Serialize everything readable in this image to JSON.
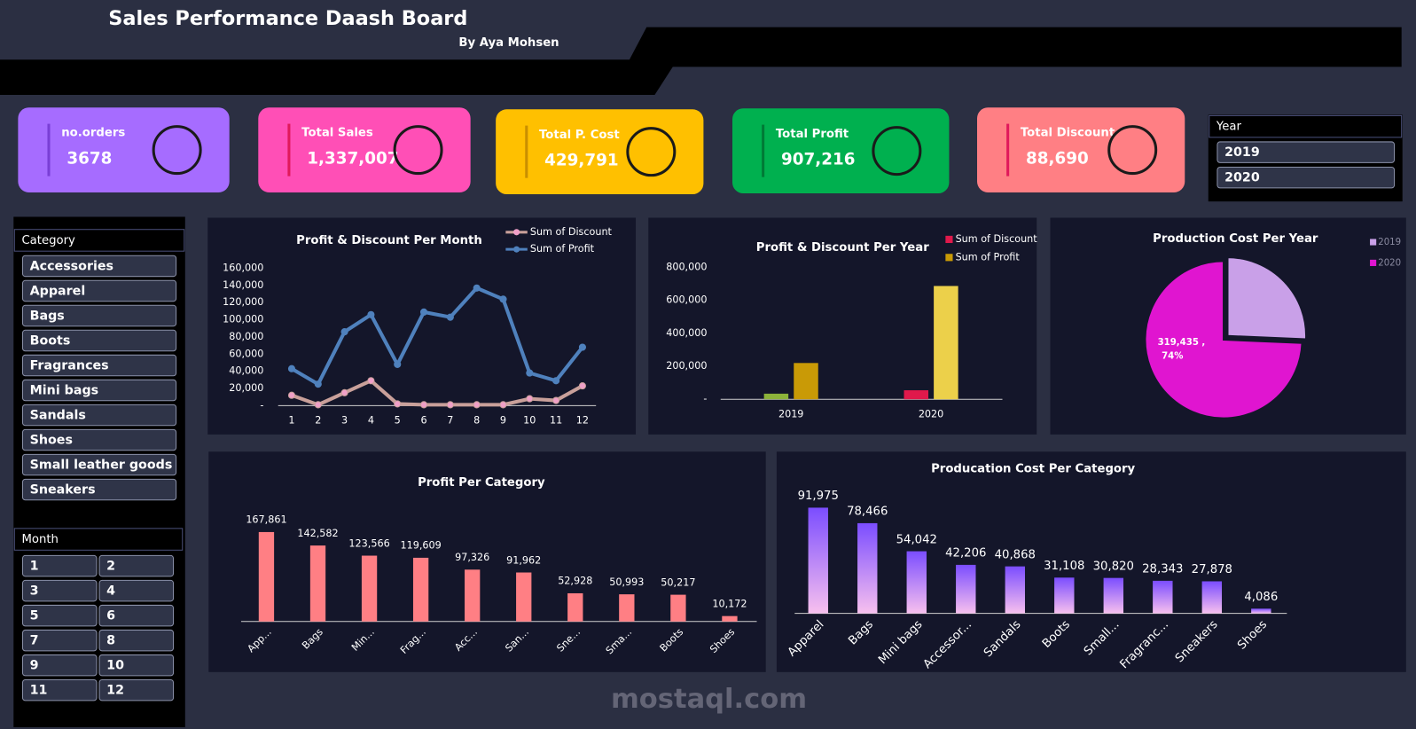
{
  "header": {
    "title": "Sales Performance Daash Board",
    "subtitle": "By Aya Mohsen"
  },
  "watermark": "mostaql.com",
  "kpis": [
    {
      "label": "no.orders",
      "value": "3678",
      "color": "#a66cff"
    },
    {
      "label": "Total Sales",
      "value": "1,337,007",
      "color": "#ff4fb6"
    },
    {
      "label": "Total P. Cost",
      "value": "429,791",
      "color": "#ffc000"
    },
    {
      "label": "Total Profit",
      "value": "907,216",
      "color": "#00b04f"
    },
    {
      "label": "Total Discount",
      "value": "88,690",
      "color": "#ff7f84"
    }
  ],
  "slicers": {
    "year": {
      "title": "Year",
      "items": [
        "2019",
        "2020"
      ]
    },
    "category": {
      "title": "Category",
      "items": [
        "Accessories",
        "Apparel",
        "Bags",
        "Boots",
        "Fragrances",
        "Mini bags",
        "Sandals",
        "Shoes",
        "Small leather goods",
        "Sneakers"
      ]
    },
    "month": {
      "title": "Month",
      "items": [
        "1",
        "2",
        "3",
        "4",
        "5",
        "6",
        "7",
        "8",
        "9",
        "10",
        "11",
        "12"
      ]
    }
  },
  "chart_data": [
    {
      "type": "line",
      "title": "Profit & Discount Per Month",
      "categories": [
        "1",
        "2",
        "3",
        "4",
        "5",
        "6",
        "7",
        "8",
        "9",
        "10",
        "11",
        "12"
      ],
      "series": [
        {
          "name": "Sum of Discount",
          "color": "#c9a09a",
          "values": [
            12000,
            1000,
            15000,
            29000,
            2000,
            1000,
            1000,
            1000,
            1000,
            8000,
            6000,
            23000
          ]
        },
        {
          "name": "Sum of Profit",
          "color": "#4f81bd",
          "values": [
            43000,
            25000,
            86000,
            106000,
            48000,
            109000,
            103000,
            137000,
            124000,
            38000,
            29000,
            68000
          ]
        }
      ],
      "ylim": [
        0,
        160000
      ],
      "yticks": [
        {
          "value": 0,
          "label": "-"
        },
        {
          "value": 20000,
          "label": "20,000"
        },
        {
          "value": 40000,
          "label": "40,000"
        },
        {
          "value": 60000,
          "label": "60,000"
        },
        {
          "value": 80000,
          "label": "80,000"
        },
        {
          "value": 100000,
          "label": "100,000"
        },
        {
          "value": 120000,
          "label": "120,000"
        },
        {
          "value": 140000,
          "label": "140,000"
        },
        {
          "value": 160000,
          "label": "160,000"
        }
      ]
    },
    {
      "type": "grouped-bar",
      "title": "Profit & Discount Per Year",
      "categories": [
        "2019",
        "2020"
      ],
      "series": [
        {
          "name": "Sum of Discount",
          "color": "#e0194b",
          "colors": [
            "#8db33a",
            "#e0194b"
          ],
          "values": [
            34000,
            54690
          ]
        },
        {
          "name": "Sum of Profit",
          "color": "#c99a06",
          "colors": [
            "#c99a06",
            "#ecd04a"
          ],
          "values": [
            220000,
            687216
          ]
        }
      ],
      "ylim": [
        0,
        800000
      ],
      "yticks": [
        {
          "value": 0,
          "label": "-"
        },
        {
          "value": 200000,
          "label": "200,000"
        },
        {
          "value": 400000,
          "label": "400,000"
        },
        {
          "value": 600000,
          "label": "600,000"
        },
        {
          "value": 800000,
          "label": "800,000"
        }
      ]
    },
    {
      "type": "pie",
      "title": "Production Cost Per Year",
      "categories": [
        "2019",
        "2020"
      ],
      "values": [
        110356,
        319435
      ],
      "colors": [
        "#c9a0e8",
        "#e015d0"
      ],
      "value_labels": [
        null,
        "319,435 ,"
      ],
      "percent_labels": [
        null,
        "74%"
      ]
    },
    {
      "type": "bar",
      "title": "Profit Per Category",
      "color": "#ff7f84",
      "categories": [
        "App...",
        "Bags",
        "Min...",
        "Frag...",
        "Acc...",
        "San...",
        "Sne...",
        "Sma...",
        "Boots",
        "Shoes"
      ],
      "values": [
        167861,
        142582,
        123566,
        119609,
        97326,
        91962,
        52928,
        50993,
        50217,
        10172
      ],
      "value_labels": [
        "167,861",
        "142,582",
        "123,566",
        "119,609",
        "97,326",
        "91,962",
        "52,928",
        "50,993",
        "50,217",
        "10,172"
      ]
    },
    {
      "type": "bar",
      "title": "Producation Cost Per Category",
      "color": "#8a5cff",
      "categories": [
        "Apparel",
        "Bags",
        "Mini bags",
        "Accessor...",
        "Sandals",
        "Boots",
        "Small...",
        "Fragranc...",
        "Sneakers",
        "Shoes"
      ],
      "values": [
        91975,
        78466,
        54042,
        42206,
        40868,
        31108,
        30820,
        28343,
        27878,
        4086
      ],
      "value_labels": [
        "91,975",
        "78,466",
        "54,042",
        "42,206",
        "40,868",
        "31,108",
        "30,820",
        "28,343",
        "27,878",
        "4,086"
      ]
    }
  ]
}
